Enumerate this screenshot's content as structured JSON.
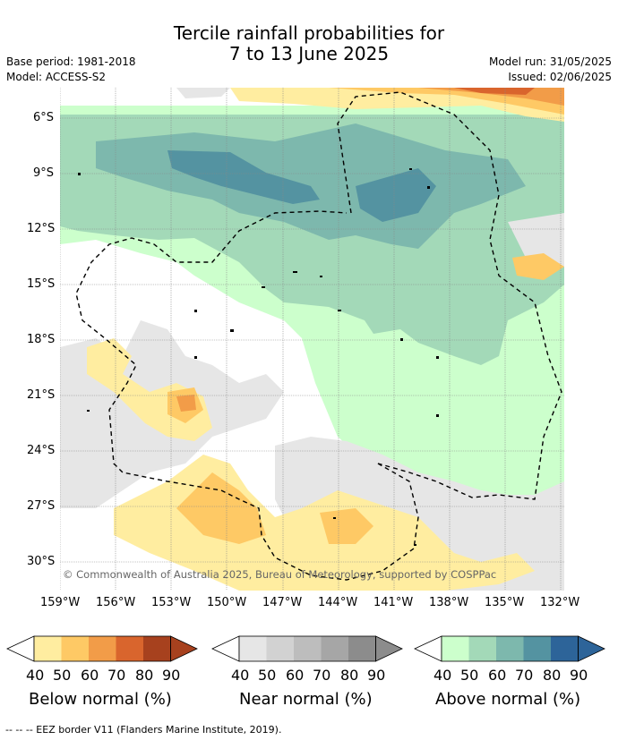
{
  "title": {
    "line1": "Tercile rainfall probabilities for",
    "line2": "7 to 13 June 2025"
  },
  "meta": {
    "base_period": "Base period: 1981-2018",
    "model": "Model: ACCESS-S2",
    "model_run": "Model run: 31/05/2025",
    "issued": "Issued: 02/06/2025"
  },
  "map": {
    "lat_labels": [
      "6°S",
      "9°S",
      "12°S",
      "15°S",
      "18°S",
      "21°S",
      "24°S",
      "27°S",
      "30°S"
    ],
    "lon_labels": [
      "159°W",
      "156°W",
      "153°W",
      "150°W",
      "147°W",
      "144°W",
      "141°W",
      "138°W",
      "135°W",
      "132°W"
    ],
    "copyright": "© Commonwealth of Australia 2025, Bureau of Meteorology, supported by COSPPac",
    "eez_style": "dashed"
  },
  "colors": {
    "below": [
      "#ffeda0",
      "#fec965",
      "#f29c48",
      "#d9652d",
      "#a7411e"
    ],
    "near": [
      "#e6e6e6",
      "#d2d2d2",
      "#bdbdbd",
      "#a6a6a6",
      "#8c8c8c"
    ],
    "above": [
      "#ccffcc",
      "#a3d9b8",
      "#7db8ad",
      "#5493a1",
      "#2d6499"
    ]
  },
  "colorbars": [
    {
      "id": "below",
      "title": "Below normal (%)",
      "ticks": [
        "40",
        "50",
        "60",
        "70",
        "80",
        "90"
      ]
    },
    {
      "id": "near",
      "title": "Near normal (%)",
      "ticks": [
        "40",
        "50",
        "60",
        "70",
        "80",
        "90"
      ]
    },
    {
      "id": "above",
      "title": "Above normal (%)",
      "ticks": [
        "40",
        "50",
        "60",
        "70",
        "80",
        "90"
      ]
    }
  ],
  "footer": "-- -- -- EEZ border V11 (Flanders Marine Institute, 2019)."
}
